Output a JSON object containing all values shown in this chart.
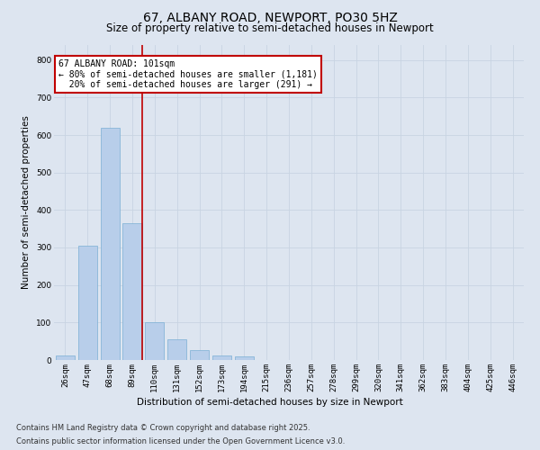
{
  "title_line1": "67, ALBANY ROAD, NEWPORT, PO30 5HZ",
  "title_line2": "Size of property relative to semi-detached houses in Newport",
  "xlabel": "Distribution of semi-detached houses by size in Newport",
  "ylabel": "Number of semi-detached properties",
  "categories": [
    "26sqm",
    "47sqm",
    "68sqm",
    "89sqm",
    "110sqm",
    "131sqm",
    "152sqm",
    "173sqm",
    "194sqm",
    "215sqm",
    "236sqm",
    "257sqm",
    "278sqm",
    "299sqm",
    "320sqm",
    "341sqm",
    "362sqm",
    "383sqm",
    "404sqm",
    "425sqm",
    "446sqm"
  ],
  "values": [
    13,
    305,
    620,
    365,
    100,
    55,
    27,
    12,
    9,
    0,
    0,
    0,
    0,
    0,
    0,
    0,
    0,
    0,
    0,
    0,
    0
  ],
  "bar_color": "#b8ceea",
  "bar_edge_color": "#7aafd4",
  "grid_color": "#c8d4e2",
  "background_color": "#dde5f0",
  "vline_color": "#c00000",
  "annotation_text": "67 ALBANY ROAD: 101sqm\n← 80% of semi-detached houses are smaller (1,181)\n  20% of semi-detached houses are larger (291) →",
  "annotation_box_color": "#ffffff",
  "annotation_box_edge": "#c00000",
  "footer_line1": "Contains HM Land Registry data © Crown copyright and database right 2025.",
  "footer_line2": "Contains public sector information licensed under the Open Government Licence v3.0.",
  "ylim": [
    0,
    840
  ],
  "yticks": [
    0,
    100,
    200,
    300,
    400,
    500,
    600,
    700,
    800
  ],
  "title_fontsize": 10,
  "subtitle_fontsize": 8.5,
  "axis_label_fontsize": 7.5,
  "tick_fontsize": 6.5,
  "annotation_fontsize": 7,
  "footer_fontsize": 6
}
